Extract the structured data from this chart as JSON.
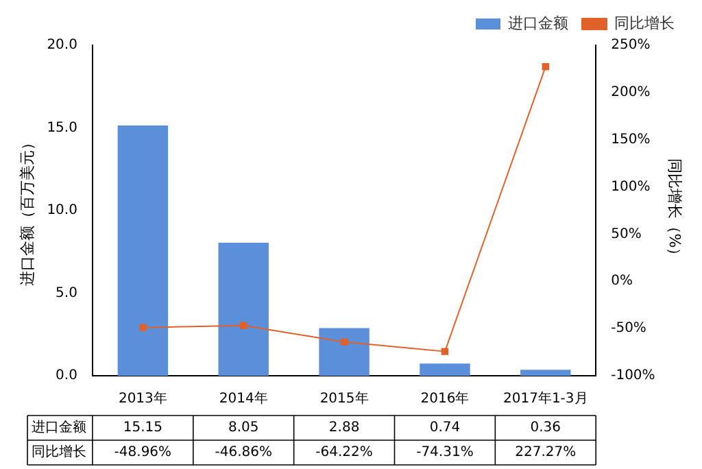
{
  "chart_data": {
    "type": "bar",
    "categories": [
      "2013年",
      "2014年",
      "2015年",
      "2016年",
      "2017年1-3月"
    ],
    "ylabel": "进口金额（百万美元）",
    "y2label": "同比增长（%）",
    "ylim": [
      0,
      20
    ],
    "yticks": [
      {
        "value": 0,
        "label": "0.0"
      },
      {
        "value": 5,
        "label": "5.0"
      },
      {
        "value": 10,
        "label": "10.0"
      },
      {
        "value": 15,
        "label": "15.0"
      },
      {
        "value": 20,
        "label": "20.0"
      }
    ],
    "y2lim": [
      -100,
      250
    ],
    "y2ticks": [
      {
        "value": -100,
        "label": "-100%"
      },
      {
        "value": -50,
        "label": "-50%"
      },
      {
        "value": 0,
        "label": "0%"
      },
      {
        "value": 50,
        "label": "50%"
      },
      {
        "value": 100,
        "label": "100%"
      },
      {
        "value": 150,
        "label": "150%"
      },
      {
        "value": 200,
        "label": "200%"
      },
      {
        "value": 250,
        "label": "250%"
      }
    ],
    "series": [
      {
        "name": "进口金额",
        "color": "#5b8fd9",
        "values": [
          15.15,
          8.05,
          2.88,
          0.74,
          0.36
        ],
        "value_labels": [
          "15.15",
          "8.05",
          "2.88",
          "0.74",
          "0.36"
        ]
      },
      {
        "name": "同比增长",
        "type": "line",
        "axis": "y2",
        "color": "#e0622a",
        "marker": "square",
        "values": [
          -48.96,
          -46.86,
          -64.22,
          -74.31,
          227.27
        ],
        "value_labels": [
          "-48.96%",
          "-46.86%",
          "-64.22%",
          "-74.31%",
          "227.27%"
        ]
      }
    ],
    "legend": "top right",
    "grid": false
  }
}
